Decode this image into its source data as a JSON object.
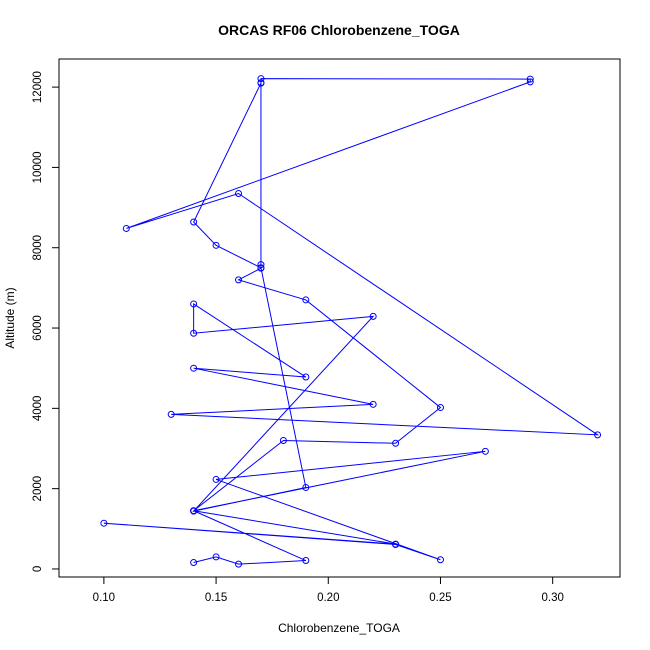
{
  "chart_data": {
    "type": "scatter",
    "title": "ORCAS RF06 Chlorobenzene_TOGA",
    "xlabel": "Chlorobenzene_TOGA",
    "ylabel": "Altitude (m)",
    "xlim": [
      0.08,
      0.33
    ],
    "ylim": [
      -200,
      12700
    ],
    "xticks": [
      0.1,
      0.15,
      0.2,
      0.25,
      0.3
    ],
    "xtick_labels": [
      "0.10",
      "0.15",
      "0.20",
      "0.25",
      "0.30"
    ],
    "yticks": [
      0,
      2000,
      4000,
      6000,
      8000,
      10000,
      12000
    ],
    "ytick_labels": [
      "0",
      "2000",
      "4000",
      "6000",
      "8000",
      "10000",
      "12000"
    ],
    "grid": false,
    "line_and_points": true,
    "color": "#0000ff",
    "series": [
      {
        "x": [
          0.14,
          0.15,
          0.16,
          0.19,
          0.14,
          0.23,
          0.1,
          0.23,
          0.25,
          0.15,
          0.27,
          0.14,
          0.18,
          0.23,
          0.25,
          0.19,
          0.16,
          0.17,
          0.17,
          0.17,
          0.17,
          0.29,
          0.29,
          0.11,
          0.16,
          0.32,
          0.13,
          0.22,
          0.14,
          0.19,
          0.14,
          0.14,
          0.22,
          0.14,
          0.19,
          0.17,
          0.15,
          0.14,
          0.17
        ],
        "y": [
          160,
          300,
          120,
          210,
          1450,
          620,
          1140,
          610,
          230,
          2230,
          2930,
          1450,
          3200,
          3130,
          4020,
          6700,
          7200,
          7490,
          7580,
          12110,
          12210,
          12200,
          12130,
          8480,
          9350,
          3340,
          3850,
          4100,
          5000,
          4780,
          6600,
          5870,
          6290,
          1440,
          2030,
          7500,
          8060,
          8640,
          12100
        ]
      }
    ]
  }
}
